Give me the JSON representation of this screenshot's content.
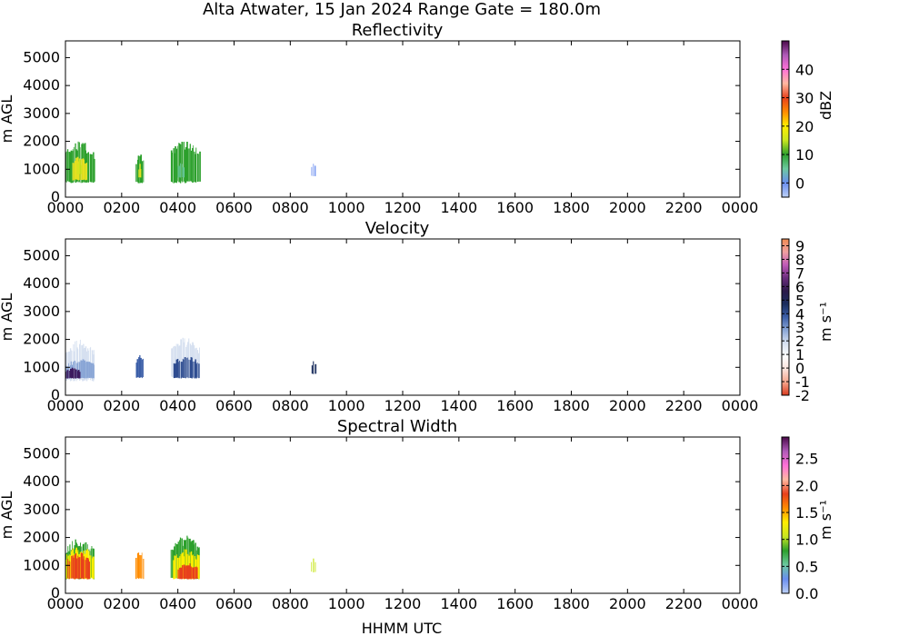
{
  "figure": {
    "suptitle": "Alta Atwater, 15 Jan 2024 Range Gate = 180.0m",
    "xlabel": "HHMM UTC"
  },
  "chart_data": [
    {
      "type": "heatmap",
      "title": "Reflectivity",
      "xlabel": "",
      "ylabel": "m AGL",
      "x_ticks": [
        "0000",
        "0200",
        "0400",
        "0600",
        "0800",
        "1000",
        "1200",
        "1400",
        "1600",
        "1800",
        "2000",
        "2200",
        "0000"
      ],
      "xlim_hours": [
        0,
        24
      ],
      "y_ticks": [
        0,
        1000,
        2000,
        3000,
        4000,
        5000
      ],
      "ylim": [
        0,
        5600
      ],
      "grid": false,
      "colorbar": {
        "label": "dBZ",
        "range": [
          -5,
          50
        ],
        "ticks": [
          "0",
          "10",
          "20",
          "30",
          "40"
        ],
        "tick_values": [
          0,
          10,
          20,
          30,
          40
        ],
        "colors": [
          "#bcd0f6",
          "#6a8ef0",
          "#6cc9a0",
          "#2ca02c",
          "#c9e620",
          "#ffee00",
          "#ff8c00",
          "#e8401c",
          "#ffb8a0",
          "#ff70d8",
          "#b05ab8",
          "#4a0a4a"
        ]
      },
      "echo_clusters": [
        {
          "x_start": "0000",
          "x_end": "0100",
          "y_base": 500,
          "y_top": 2000,
          "color": "#2ca02c"
        },
        {
          "x_start": "0015",
          "x_end": "0045",
          "y_base": 600,
          "y_top": 1500,
          "color": "#e5e020"
        },
        {
          "x_start": "0025",
          "x_end": "0032",
          "y_base": 800,
          "y_top": 1400,
          "color": "#c9e620"
        },
        {
          "x_start": "0230",
          "x_end": "0245",
          "y_base": 500,
          "y_top": 1600,
          "color": "#2ca02c"
        },
        {
          "x_start": "0236",
          "x_end": "0240",
          "y_base": 700,
          "y_top": 1200,
          "color": "#e5e020"
        },
        {
          "x_start": "0345",
          "x_end": "0445",
          "y_base": 500,
          "y_top": 2100,
          "color": "#2ca02c"
        },
        {
          "x_start": "0400",
          "x_end": "0410",
          "y_base": 700,
          "y_top": 1300,
          "color": "#6cc9a0"
        },
        {
          "x_start": "0845",
          "x_end": "0852",
          "y_base": 750,
          "y_top": 1250,
          "color": "#6a8ef0"
        }
      ]
    },
    {
      "type": "heatmap",
      "title": "Velocity",
      "xlabel": "",
      "ylabel": "m AGL",
      "x_ticks": [
        "0000",
        "0200",
        "0400",
        "0600",
        "0800",
        "1000",
        "1200",
        "1400",
        "1600",
        "1800",
        "2000",
        "2200",
        "0000"
      ],
      "xlim_hours": [
        0,
        24
      ],
      "y_ticks": [
        0,
        1000,
        2000,
        3000,
        4000,
        5000
      ],
      "ylim": [
        0,
        5600
      ],
      "grid": false,
      "colorbar": {
        "label": "m s⁻¹",
        "range": [
          -2,
          9.5
        ],
        "ticks": [
          "-2",
          "-1",
          "0",
          "1",
          "2",
          "3",
          "4",
          "5",
          "6",
          "7",
          "8",
          "9"
        ],
        "tick_values": [
          -2,
          -1,
          0,
          1,
          2,
          3,
          4,
          5,
          6,
          7,
          8,
          9
        ],
        "colors": [
          "#d93a1e",
          "#f5a58c",
          "#fbe3dc",
          "#ffffff",
          "#d6e0f0",
          "#8aa6d6",
          "#3c5fa8",
          "#1b2e5e",
          "#2b1a4a",
          "#6a2d7d",
          "#c05ab8",
          "#f0a0a0",
          "#f08a50"
        ]
      },
      "echo_clusters": [
        {
          "x_start": "0000",
          "x_end": "0100",
          "y_base": 500,
          "y_top": 2000,
          "color": "#d6e0f0"
        },
        {
          "x_start": "0000",
          "x_end": "0100",
          "y_base": 600,
          "y_top": 1300,
          "color": "#8aa6d6"
        },
        {
          "x_start": "0000",
          "x_end": "0030",
          "y_base": 600,
          "y_top": 1000,
          "color": "#3c1a5e"
        },
        {
          "x_start": "0230",
          "x_end": "0245",
          "y_base": 600,
          "y_top": 1600,
          "color": "#3c5fa8"
        },
        {
          "x_start": "0345",
          "x_end": "0445",
          "y_base": 600,
          "y_top": 2100,
          "color": "#d6e0f0"
        },
        {
          "x_start": "0350",
          "x_end": "0445",
          "y_base": 600,
          "y_top": 1400,
          "color": "#2e4c90"
        },
        {
          "x_start": "0845",
          "x_end": "0852",
          "y_base": 750,
          "y_top": 1250,
          "color": "#1b2e5e"
        }
      ]
    },
    {
      "type": "heatmap",
      "title": "Spectral Width",
      "xlabel": "",
      "ylabel": "m AGL",
      "x_ticks": [
        "0000",
        "0200",
        "0400",
        "0600",
        "0800",
        "1000",
        "1200",
        "1400",
        "1600",
        "1800",
        "2000",
        "2200",
        "0000"
      ],
      "xlim_hours": [
        0,
        24
      ],
      "y_ticks": [
        0,
        1000,
        2000,
        3000,
        4000,
        5000
      ],
      "ylim": [
        0,
        5600
      ],
      "grid": false,
      "colorbar": {
        "label": "m s⁻¹",
        "range": [
          0,
          2.9
        ],
        "ticks": [
          "0.0",
          "0.5",
          "1.0",
          "1.5",
          "2.0",
          "2.5"
        ],
        "tick_values": [
          0,
          0.5,
          1.0,
          1.5,
          2.0,
          2.5
        ],
        "colors": [
          "#bcd0f6",
          "#6a8ef0",
          "#6cc9a0",
          "#2ca02c",
          "#c9e620",
          "#ffee00",
          "#ff8c00",
          "#e8401c",
          "#ffb8a0",
          "#ff70d8",
          "#b05ab8",
          "#4a0a4a"
        ]
      },
      "echo_clusters": [
        {
          "x_start": "0000",
          "x_end": "0100",
          "y_base": 500,
          "y_top": 2000,
          "color": "#2ca02c"
        },
        {
          "x_start": "0000",
          "x_end": "0100",
          "y_base": 500,
          "y_top": 1700,
          "color": "#ffee00"
        },
        {
          "x_start": "0005",
          "x_end": "0050",
          "y_base": 500,
          "y_top": 1500,
          "color": "#e8401c"
        },
        {
          "x_start": "0230",
          "x_end": "0245",
          "y_base": 500,
          "y_top": 1600,
          "color": "#ff8c00"
        },
        {
          "x_start": "0345",
          "x_end": "0445",
          "y_base": 500,
          "y_top": 2100,
          "color": "#2ca02c"
        },
        {
          "x_start": "0350",
          "x_end": "0445",
          "y_base": 500,
          "y_top": 1600,
          "color": "#ffee00"
        },
        {
          "x_start": "0400",
          "x_end": "0440",
          "y_base": 500,
          "y_top": 1100,
          "color": "#e8401c"
        },
        {
          "x_start": "0845",
          "x_end": "0852",
          "y_base": 750,
          "y_top": 1250,
          "color": "#c9e620"
        }
      ]
    }
  ]
}
